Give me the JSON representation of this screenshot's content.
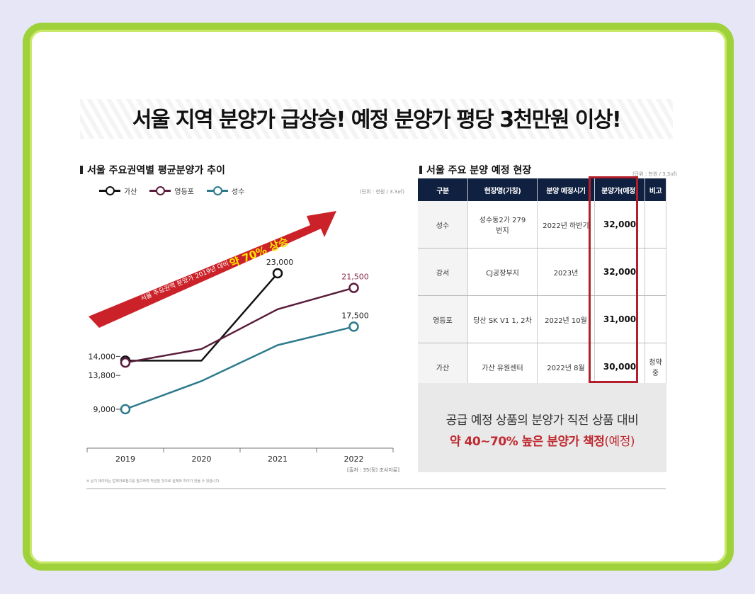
{
  "banner": {
    "title": "서울 지역 분양가 급상승! 예정 분양가 평당 3천만원 이상!"
  },
  "chart_section": {
    "title": "서울 주요권역별 평균분양가 추이",
    "unit": "(단위 : 천원 / 3.3㎡)",
    "source": "[출처 : 35(정) 조사자료]",
    "footnote": "※ 상기 데이터는 업계자료참고를 참고하여 작성된 것으로 실제와 차이가 있을 수 있습니다."
  },
  "chart_data": {
    "type": "line",
    "x": [
      "2019",
      "2020",
      "2021",
      "2022"
    ],
    "series": [
      {
        "name": "가산",
        "color": "#111111",
        "values": [
          14000,
          14000,
          23000,
          null
        ]
      },
      {
        "name": "영등포",
        "color": "#5a1e3c",
        "values": [
          13800,
          15200,
          19300,
          21500
        ]
      },
      {
        "name": "성수",
        "color": "#2d7b8c",
        "values": [
          9000,
          11900,
          15600,
          17500
        ]
      }
    ],
    "labels": [
      {
        "series": 0,
        "index": 0,
        "text": "14,000"
      },
      {
        "series": 1,
        "index": 0,
        "text": "13,800"
      },
      {
        "series": 2,
        "index": 0,
        "text": "9,000"
      },
      {
        "series": 0,
        "index": 2,
        "text": "23,000"
      },
      {
        "series": 1,
        "index": 3,
        "text": "21,500"
      },
      {
        "series": 2,
        "index": 3,
        "text": "17,500"
      }
    ],
    "ylim": [
      7000,
      26000
    ],
    "grid": false,
    "legend": "top-left",
    "annotation": {
      "text": "서울 주요권역 분양가 2019년 대비",
      "highlight": "약 70% 상승",
      "color": "#c81e22"
    }
  },
  "table_section": {
    "title": "서울 주요 분양 예정 현장",
    "unit": "(단위 : 천원 / 3.3㎡)",
    "headers": [
      "구분",
      "현장명(가칭)",
      "분양 예정시기",
      "분양가(예정)",
      "비고"
    ],
    "rows": [
      {
        "area": "성수",
        "site": "성수동2가 279번지",
        "time": "2022년 하반기",
        "price": "32,000",
        "note": ""
      },
      {
        "area": "강서",
        "site": "CJ공장부지",
        "time": "2023년",
        "price": "32,000",
        "note": ""
      },
      {
        "area": "영등포",
        "site": "당산 SK V1 1, 2차",
        "time": "2022년 10월",
        "price": "31,000",
        "note": ""
      },
      {
        "area": "가산",
        "site": "가산 유원센터",
        "time": "2022년 8월",
        "price": "30,000",
        "note": "청약중"
      }
    ],
    "highlight_color": "#b41e2a",
    "summary_line1": "공급 예정 상품의 분양가 직전 상품 대비",
    "summary_line2_bold": "약 40~70% 높은 분양가 책정",
    "summary_line2_tail": "(예정)"
  }
}
